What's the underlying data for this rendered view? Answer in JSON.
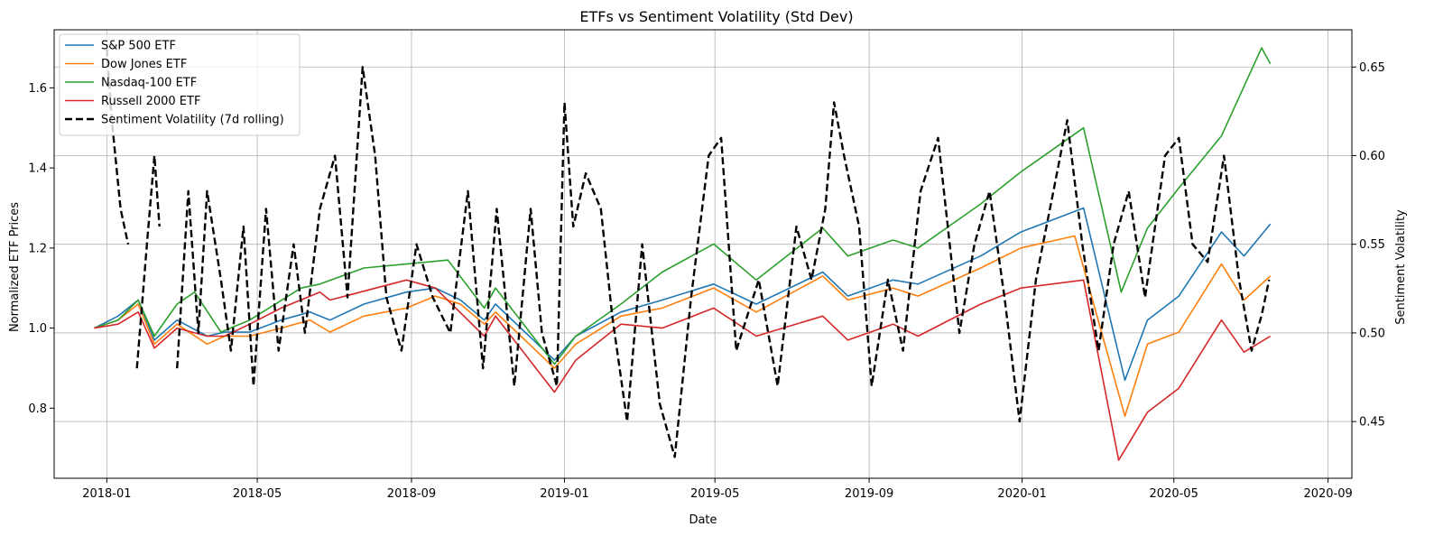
{
  "chart_data": {
    "type": "line",
    "title": "ETFs vs Sentiment Volatility (Std Dev)",
    "xlabel": "Date",
    "ylabel": "Normalized ETF Prices",
    "y2label": "Sentiment Volatility",
    "xlim": [
      "2017-11-20",
      "2020-09-20"
    ],
    "ylim": [
      0.625,
      1.745
    ],
    "y2lim": [
      0.418,
      0.671
    ],
    "x_ticks": [
      "2018-01",
      "2018-05",
      "2018-09",
      "2019-01",
      "2019-05",
      "2019-09",
      "2020-01",
      "2020-05",
      "2020-09"
    ],
    "y_ticks": [
      0.8,
      1.0,
      1.2,
      1.4,
      1.6
    ],
    "y2_ticks": [
      0.45,
      0.5,
      0.55,
      0.6,
      0.65
    ],
    "y_tick_labels": [
      "0.8",
      "1.0",
      "1.2",
      "1.4",
      "1.6"
    ],
    "y2_tick_labels": [
      "0.45",
      "0.50",
      "0.55",
      "0.60",
      "0.65"
    ],
    "grid": true,
    "legend_position": "top-left",
    "series": [
      {
        "name": "S&P 500 ETF",
        "axis": "left",
        "color": "#1f77b4",
        "style": "solid",
        "points": [
          [
            "2017-12-22",
            1.0
          ],
          [
            "2018-01-10",
            1.03
          ],
          [
            "2018-01-26",
            1.07
          ],
          [
            "2018-02-08",
            0.97
          ],
          [
            "2018-02-26",
            1.02
          ],
          [
            "2018-03-22",
            0.98
          ],
          [
            "2018-04-05",
            0.99
          ],
          [
            "2018-04-25",
            0.99
          ],
          [
            "2018-05-20",
            1.02
          ],
          [
            "2018-06-12",
            1.04
          ],
          [
            "2018-06-28",
            1.02
          ],
          [
            "2018-07-25",
            1.06
          ],
          [
            "2018-08-28",
            1.09
          ],
          [
            "2018-09-20",
            1.1
          ],
          [
            "2018-10-10",
            1.07
          ],
          [
            "2018-10-29",
            1.02
          ],
          [
            "2018-11-07",
            1.06
          ],
          [
            "2018-12-24",
            0.92
          ],
          [
            "2019-01-10",
            0.98
          ],
          [
            "2019-02-15",
            1.04
          ],
          [
            "2019-03-20",
            1.07
          ],
          [
            "2019-04-30",
            1.11
          ],
          [
            "2019-06-03",
            1.06
          ],
          [
            "2019-07-26",
            1.14
          ],
          [
            "2019-08-15",
            1.08
          ],
          [
            "2019-09-20",
            1.12
          ],
          [
            "2019-10-10",
            1.11
          ],
          [
            "2019-11-29",
            1.18
          ],
          [
            "2019-12-31",
            1.24
          ],
          [
            "2020-02-19",
            1.3
          ],
          [
            "2020-03-23",
            0.87
          ],
          [
            "2020-04-10",
            1.02
          ],
          [
            "2020-05-05",
            1.08
          ],
          [
            "2020-06-08",
            1.24
          ],
          [
            "2020-06-26",
            1.18
          ],
          [
            "2020-07-17",
            1.26
          ]
        ]
      },
      {
        "name": "Dow Jones ETF",
        "axis": "left",
        "color": "#ff7f0e",
        "style": "solid",
        "points": [
          [
            "2017-12-22",
            1.0
          ],
          [
            "2018-01-10",
            1.02
          ],
          [
            "2018-01-26",
            1.06
          ],
          [
            "2018-02-08",
            0.96
          ],
          [
            "2018-02-26",
            1.01
          ],
          [
            "2018-03-22",
            0.96
          ],
          [
            "2018-04-05",
            0.98
          ],
          [
            "2018-04-25",
            0.98
          ],
          [
            "2018-05-20",
            1.0
          ],
          [
            "2018-06-12",
            1.02
          ],
          [
            "2018-06-28",
            0.99
          ],
          [
            "2018-07-25",
            1.03
          ],
          [
            "2018-08-28",
            1.05
          ],
          [
            "2018-09-20",
            1.08
          ],
          [
            "2018-10-10",
            1.06
          ],
          [
            "2018-10-29",
            1.01
          ],
          [
            "2018-11-07",
            1.04
          ],
          [
            "2018-12-24",
            0.9
          ],
          [
            "2019-01-10",
            0.96
          ],
          [
            "2019-02-15",
            1.03
          ],
          [
            "2019-03-20",
            1.05
          ],
          [
            "2019-04-30",
            1.1
          ],
          [
            "2019-06-03",
            1.04
          ],
          [
            "2019-07-26",
            1.13
          ],
          [
            "2019-08-15",
            1.07
          ],
          [
            "2019-09-20",
            1.1
          ],
          [
            "2019-10-10",
            1.08
          ],
          [
            "2019-11-29",
            1.15
          ],
          [
            "2019-12-31",
            1.2
          ],
          [
            "2020-02-12",
            1.23
          ],
          [
            "2020-03-23",
            0.78
          ],
          [
            "2020-04-10",
            0.96
          ],
          [
            "2020-05-05",
            0.99
          ],
          [
            "2020-06-08",
            1.16
          ],
          [
            "2020-06-26",
            1.07
          ],
          [
            "2020-07-17",
            1.13
          ]
        ]
      },
      {
        "name": "Nasdaq-100 ETF",
        "axis": "left",
        "color": "#2ca02c",
        "style": "solid",
        "points": [
          [
            "2017-12-22",
            1.0
          ],
          [
            "2018-01-10",
            1.02
          ],
          [
            "2018-01-26",
            1.07
          ],
          [
            "2018-02-08",
            0.98
          ],
          [
            "2018-02-26",
            1.06
          ],
          [
            "2018-03-12",
            1.09
          ],
          [
            "2018-04-02",
            0.99
          ],
          [
            "2018-04-25",
            1.02
          ],
          [
            "2018-06-05",
            1.1
          ],
          [
            "2018-06-20",
            1.11
          ],
          [
            "2018-07-25",
            1.15
          ],
          [
            "2018-08-28",
            1.16
          ],
          [
            "2018-09-30",
            1.17
          ],
          [
            "2018-10-29",
            1.05
          ],
          [
            "2018-11-07",
            1.1
          ],
          [
            "2018-12-24",
            0.91
          ],
          [
            "2019-01-10",
            0.98
          ],
          [
            "2019-02-15",
            1.06
          ],
          [
            "2019-03-20",
            1.14
          ],
          [
            "2019-04-30",
            1.21
          ],
          [
            "2019-06-03",
            1.12
          ],
          [
            "2019-07-26",
            1.25
          ],
          [
            "2019-08-15",
            1.18
          ],
          [
            "2019-09-20",
            1.22
          ],
          [
            "2019-10-10",
            1.2
          ],
          [
            "2019-11-29",
            1.31
          ],
          [
            "2019-12-31",
            1.39
          ],
          [
            "2020-02-19",
            1.5
          ],
          [
            "2020-03-20",
            1.09
          ],
          [
            "2020-04-10",
            1.25
          ],
          [
            "2020-05-05",
            1.35
          ],
          [
            "2020-06-08",
            1.48
          ],
          [
            "2020-07-10",
            1.7
          ],
          [
            "2020-07-17",
            1.66
          ]
        ]
      },
      {
        "name": "Russell 2000 ETF",
        "axis": "left",
        "color": "#d62728",
        "style": "solid",
        "points": [
          [
            "2017-12-22",
            1.0
          ],
          [
            "2018-01-10",
            1.01
          ],
          [
            "2018-01-26",
            1.04
          ],
          [
            "2018-02-08",
            0.95
          ],
          [
            "2018-02-26",
            1.0
          ],
          [
            "2018-03-22",
            0.98
          ],
          [
            "2018-04-05",
            0.98
          ],
          [
            "2018-04-25",
            1.01
          ],
          [
            "2018-05-20",
            1.05
          ],
          [
            "2018-06-20",
            1.09
          ],
          [
            "2018-06-28",
            1.07
          ],
          [
            "2018-08-28",
            1.12
          ],
          [
            "2018-09-20",
            1.1
          ],
          [
            "2018-10-29",
            0.98
          ],
          [
            "2018-11-07",
            1.03
          ],
          [
            "2018-12-24",
            0.84
          ],
          [
            "2019-01-10",
            0.92
          ],
          [
            "2019-02-15",
            1.01
          ],
          [
            "2019-03-20",
            1.0
          ],
          [
            "2019-04-30",
            1.05
          ],
          [
            "2019-06-03",
            0.98
          ],
          [
            "2019-07-26",
            1.03
          ],
          [
            "2019-08-15",
            0.97
          ],
          [
            "2019-09-20",
            1.01
          ],
          [
            "2019-10-10",
            0.98
          ],
          [
            "2019-11-29",
            1.06
          ],
          [
            "2019-12-31",
            1.1
          ],
          [
            "2020-02-19",
            1.12
          ],
          [
            "2020-03-18",
            0.67
          ],
          [
            "2020-04-10",
            0.79
          ],
          [
            "2020-05-05",
            0.85
          ],
          [
            "2020-06-08",
            1.02
          ],
          [
            "2020-06-26",
            0.94
          ],
          [
            "2020-07-17",
            0.98
          ]
        ]
      },
      {
        "name": "Sentiment Volatility (7d rolling)",
        "axis": "right",
        "color": "#000000",
        "style": "dashed",
        "points": [
          [
            "2018-01-01",
            0.66
          ],
          [
            "2018-01-05",
            0.62
          ],
          [
            "2018-01-12",
            0.57
          ],
          [
            "2018-01-18",
            0.55
          ],
          [
            "2018-01-22",
            null
          ],
          [
            "2018-01-25",
            0.48
          ],
          [
            "2018-02-02",
            0.55
          ],
          [
            "2018-02-08",
            0.6
          ],
          [
            "2018-02-12",
            0.56
          ],
          [
            "2018-02-22",
            null
          ],
          [
            "2018-02-26",
            0.48
          ],
          [
            "2018-03-07",
            0.58
          ],
          [
            "2018-03-15",
            0.5
          ],
          [
            "2018-03-22",
            0.58
          ],
          [
            "2018-04-02",
            0.53
          ],
          [
            "2018-04-10",
            0.49
          ],
          [
            "2018-04-20",
            0.56
          ],
          [
            "2018-04-28",
            0.47
          ],
          [
            "2018-05-08",
            0.57
          ],
          [
            "2018-05-18",
            0.49
          ],
          [
            "2018-05-30",
            0.55
          ],
          [
            "2018-06-08",
            0.5
          ],
          [
            "2018-06-20",
            0.57
          ],
          [
            "2018-07-02",
            0.6
          ],
          [
            "2018-07-12",
            0.52
          ],
          [
            "2018-07-24",
            0.65
          ],
          [
            "2018-08-03",
            0.6
          ],
          [
            "2018-08-12",
            0.52
          ],
          [
            "2018-08-24",
            0.49
          ],
          [
            "2018-09-05",
            0.55
          ],
          [
            "2018-09-18",
            0.52
          ],
          [
            "2018-10-02",
            0.5
          ],
          [
            "2018-10-16",
            0.58
          ],
          [
            "2018-10-28",
            0.48
          ],
          [
            "2018-11-08",
            0.57
          ],
          [
            "2018-11-22",
            0.47
          ],
          [
            "2018-12-05",
            0.57
          ],
          [
            "2018-12-14",
            0.5
          ],
          [
            "2018-12-26",
            0.47
          ],
          [
            "2019-01-01",
            0.63
          ],
          [
            "2019-01-08",
            0.56
          ],
          [
            "2019-01-18",
            0.59
          ],
          [
            "2019-01-30",
            0.57
          ],
          [
            "2019-02-08",
            0.51
          ],
          [
            "2019-02-20",
            0.45
          ],
          [
            "2019-03-04",
            0.55
          ],
          [
            "2019-03-18",
            0.46
          ],
          [
            "2019-03-30",
            0.43
          ],
          [
            "2019-04-12",
            0.52
          ],
          [
            "2019-04-26",
            0.6
          ],
          [
            "2019-05-06",
            0.61
          ],
          [
            "2019-05-18",
            0.49
          ],
          [
            "2019-06-05",
            0.53
          ],
          [
            "2019-06-20",
            0.47
          ],
          [
            "2019-07-05",
            0.56
          ],
          [
            "2019-07-17",
            0.53
          ],
          [
            "2019-07-28",
            0.57
          ],
          [
            "2019-08-04",
            0.63
          ],
          [
            "2019-08-12",
            0.6
          ],
          [
            "2019-08-24",
            0.56
          ],
          [
            "2019-09-03",
            0.47
          ],
          [
            "2019-09-16",
            0.53
          ],
          [
            "2019-09-28",
            0.49
          ],
          [
            "2019-10-12",
            0.58
          ],
          [
            "2019-10-26",
            0.61
          ],
          [
            "2019-11-12",
            0.5
          ],
          [
            "2019-11-24",
            0.55
          ],
          [
            "2019-12-06",
            0.58
          ],
          [
            "2019-12-18",
            0.52
          ],
          [
            "2019-12-30",
            0.45
          ],
          [
            "2020-01-12",
            0.53
          ],
          [
            "2020-01-26",
            0.58
          ],
          [
            "2020-02-06",
            0.62
          ],
          [
            "2020-02-18",
            0.55
          ],
          [
            "2020-03-02",
            0.49
          ],
          [
            "2020-03-14",
            0.55
          ],
          [
            "2020-03-26",
            0.58
          ],
          [
            "2020-04-08",
            0.52
          ],
          [
            "2020-04-24",
            0.6
          ],
          [
            "2020-05-05",
            0.61
          ],
          [
            "2020-05-16",
            0.55
          ],
          [
            "2020-05-28",
            0.54
          ],
          [
            "2020-06-10",
            0.6
          ],
          [
            "2020-06-22",
            0.53
          ],
          [
            "2020-07-02",
            0.49
          ],
          [
            "2020-07-10",
            0.51
          ],
          [
            "2020-07-16",
            0.53
          ]
        ]
      }
    ]
  }
}
